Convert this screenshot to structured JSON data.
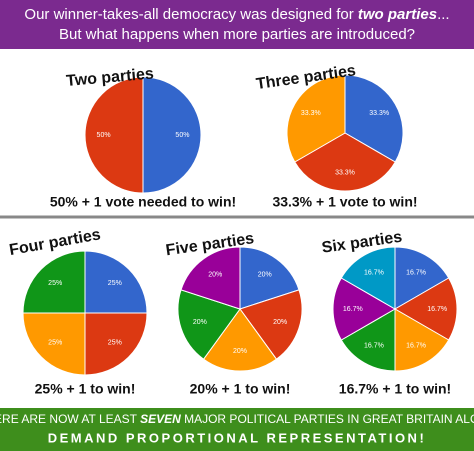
{
  "header": {
    "line1": [
      "Our winner-takes-all democracy was designed for ",
      "two parties",
      "..."
    ],
    "line2": "But what happens when more parties are introduced?"
  },
  "chart_data": [
    {
      "type": "pie",
      "title": "Two parties",
      "values": [
        50,
        50
      ],
      "value_labels": [
        "50%",
        "50%"
      ],
      "colors": [
        "#3366cc",
        "#dc3912"
      ],
      "annotation": "50% + 1 vote needed to win!"
    },
    {
      "type": "pie",
      "title": "Three parties",
      "values": [
        33.3,
        33.3,
        33.3
      ],
      "value_labels": [
        "33.3%",
        "33.3%",
        "33.3%"
      ],
      "colors": [
        "#3366cc",
        "#dc3912",
        "#ff9900"
      ],
      "annotation": "33.3% + 1 vote to win!"
    },
    {
      "type": "pie",
      "title": "Four parties",
      "values": [
        25,
        25,
        25,
        25
      ],
      "value_labels": [
        "25%",
        "25%",
        "25%",
        "25%"
      ],
      "colors": [
        "#3366cc",
        "#dc3912",
        "#ff9900",
        "#109618"
      ],
      "annotation": "25% + 1 to win!"
    },
    {
      "type": "pie",
      "title": "Five parties",
      "values": [
        20,
        20,
        20,
        20,
        20
      ],
      "value_labels": [
        "20%",
        "20%",
        "20%",
        "20%",
        "20%"
      ],
      "colors": [
        "#3366cc",
        "#dc3912",
        "#ff9900",
        "#109618",
        "#990099"
      ],
      "annotation": "20% + 1 to win!"
    },
    {
      "type": "pie",
      "title": "Six parties",
      "values": [
        16.7,
        16.7,
        16.7,
        16.7,
        16.7,
        16.7
      ],
      "value_labels": [
        "16.7%",
        "16.7%",
        "16.7%",
        "16.7%",
        "16.7%",
        "16.7%"
      ],
      "colors": [
        "#3366cc",
        "#dc3912",
        "#ff9900",
        "#109618",
        "#990099",
        "#0099c6"
      ],
      "annotation": "16.7% + 1 to win!"
    }
  ],
  "footer": {
    "line1": [
      "THERE ARE NOW AT LEAST ",
      "SEVEN",
      " MAJOR POLITICAL PARTIES IN GREAT BRITAIN ALONE"
    ],
    "line2": "DEMAND PROPORTIONAL REPRESENTATION!"
  }
}
